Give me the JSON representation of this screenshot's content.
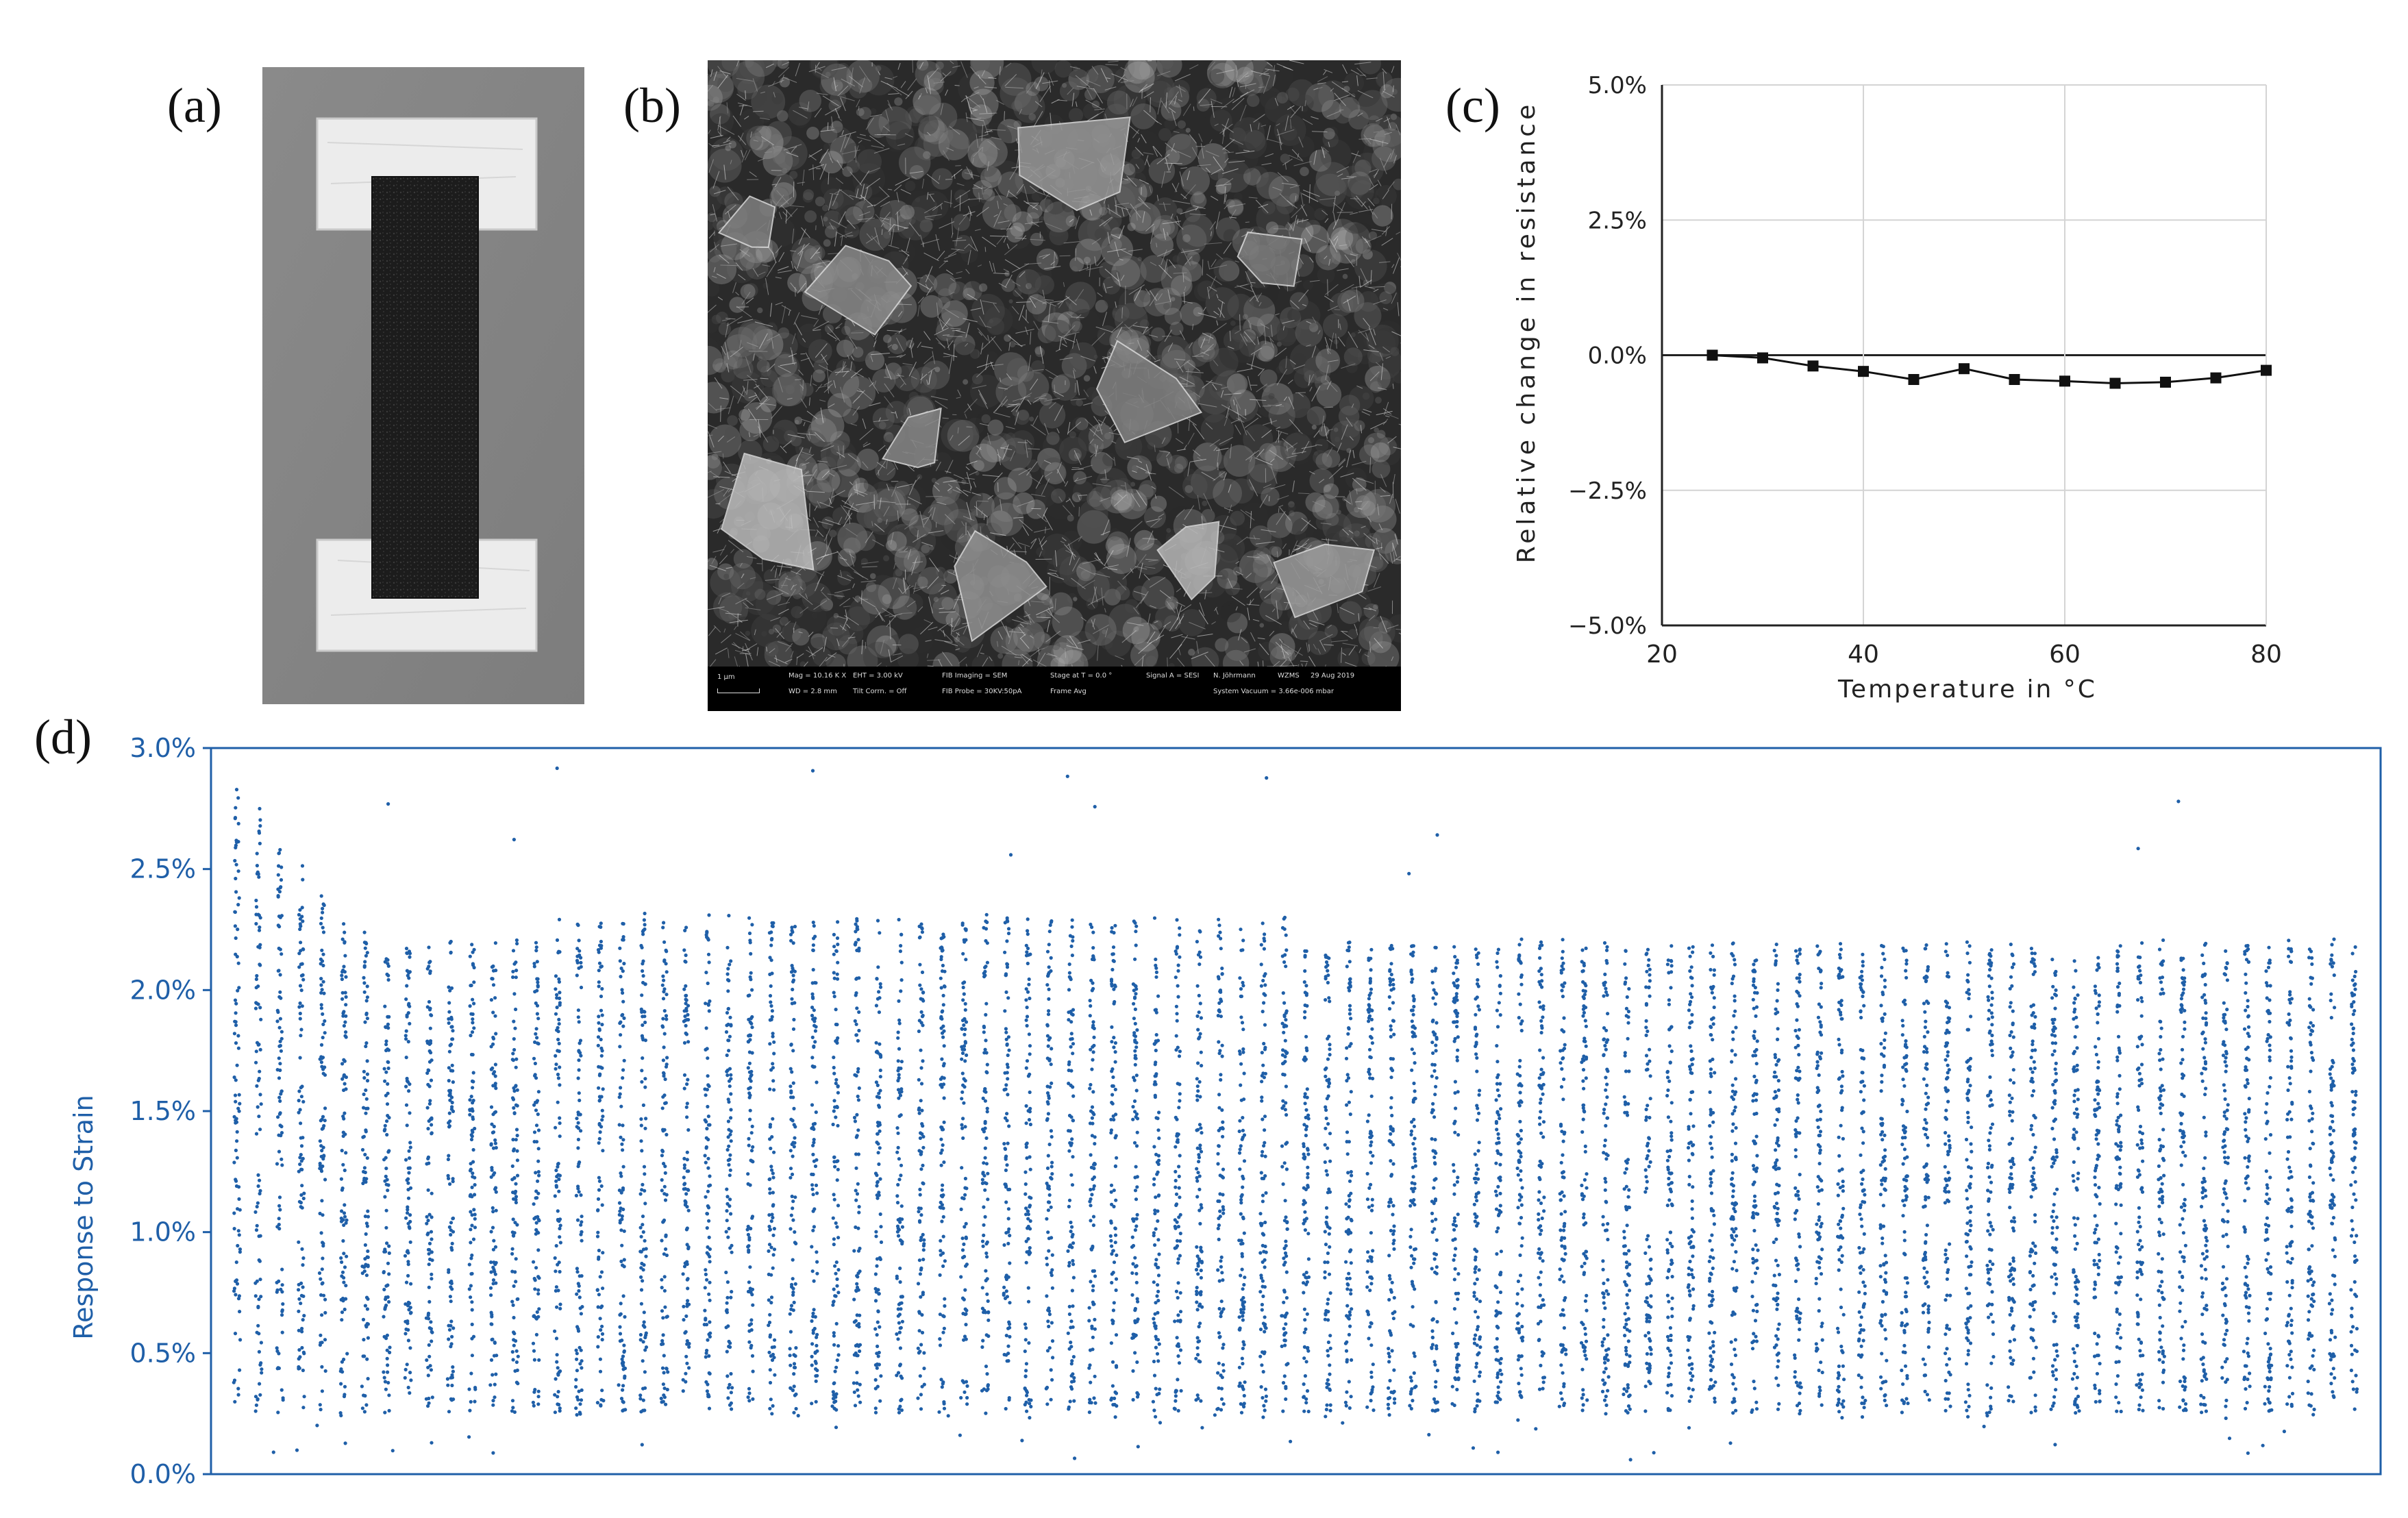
{
  "panels": {
    "a": {
      "label": "(a)"
    },
    "b": {
      "label": "(b)",
      "sem_info": {
        "scale": "1 µm",
        "col1": [
          "Mag = 10.16 K X",
          "WD = 2.8 mm"
        ],
        "col2": [
          "EHT = 3.00 kV",
          "Tilt Corrn. = Off"
        ],
        "col3": [
          "FIB Imaging = SEM",
          "FIB Probe = 30KV:50pA"
        ],
        "col4": [
          "Stage at T = 0.0 °",
          "Frame Avg"
        ],
        "col5": [
          "Signal A = SESI",
          ""
        ],
        "col6": [
          "N. Jöhrmann",
          "System Vacuum = 3.66e-006 mbar"
        ],
        "col7": [
          "WZMS",
          ""
        ],
        "col8": [
          "29 Aug 2019",
          ""
        ]
      }
    },
    "c": {
      "label": "(c)"
    },
    "d": {
      "label": "(d)"
    }
  },
  "chart_data": [
    {
      "panel": "c",
      "type": "line",
      "title": "",
      "xlabel": "Temperature in °C",
      "ylabel": "Relative change in resistance",
      "xlim": [
        20,
        80
      ],
      "ylim": [
        -5.0,
        5.0
      ],
      "xticks": [
        "20",
        "40",
        "60",
        "80"
      ],
      "yticks": [
        "5.0%",
        "2.5%",
        "0.0%",
        "−2.5%",
        "−5.0%"
      ],
      "grid": true,
      "x": [
        25,
        30,
        35,
        40,
        45,
        50,
        55,
        60,
        65,
        70,
        75,
        80
      ],
      "y": [
        0.0,
        -0.05,
        -0.2,
        -0.3,
        -0.45,
        -0.25,
        -0.45,
        -0.48,
        -0.52,
        -0.5,
        -0.42,
        -0.28
      ],
      "color": "#111111"
    },
    {
      "panel": "d",
      "type": "scatter",
      "title": "",
      "xlabel": "",
      "ylabel": "Response to Strain",
      "ylim": [
        0.0,
        3.0
      ],
      "yticks": [
        "3.0%",
        "2.5%",
        "2.0%",
        "1.5%",
        "1.0%",
        "0.5%",
        "0.0%"
      ],
      "grid": false,
      "color": "#1f5fa8",
      "cycles": 100,
      "peak_envelope_percent": [
        2.9,
        2.8,
        2.6,
        2.5,
        2.4,
        2.3,
        2.25,
        2.2,
        2.2,
        2.2,
        2.2,
        2.2,
        2.2,
        2.2,
        2.2,
        2.3,
        2.3,
        2.3,
        2.3,
        2.3,
        2.3,
        2.3,
        2.3,
        2.3,
        2.3,
        2.3,
        2.3,
        2.3,
        2.3,
        2.3,
        2.3,
        2.3,
        2.3,
        2.3,
        2.3,
        2.3,
        2.3,
        2.3,
        2.3,
        2.3,
        2.3,
        2.3,
        2.3,
        2.3,
        2.3,
        2.3,
        2.3,
        2.3,
        2.3,
        2.3,
        2.2,
        2.2,
        2.2,
        2.2,
        2.2,
        2.2,
        2.2,
        2.2,
        2.2,
        2.2,
        2.2,
        2.2,
        2.2,
        2.2,
        2.2,
        2.2,
        2.2,
        2.2,
        2.2,
        2.2,
        2.2,
        2.2,
        2.2,
        2.2,
        2.2,
        2.2,
        2.2,
        2.2,
        2.2,
        2.2,
        2.2,
        2.2,
        2.2,
        2.2,
        2.2,
        2.2,
        2.2,
        2.2,
        2.2,
        2.2,
        2.2,
        2.2,
        2.2,
        2.2,
        2.2,
        2.2,
        2.2,
        2.2,
        2.2,
        2.2
      ],
      "trough_percent": 0.25
    }
  ]
}
